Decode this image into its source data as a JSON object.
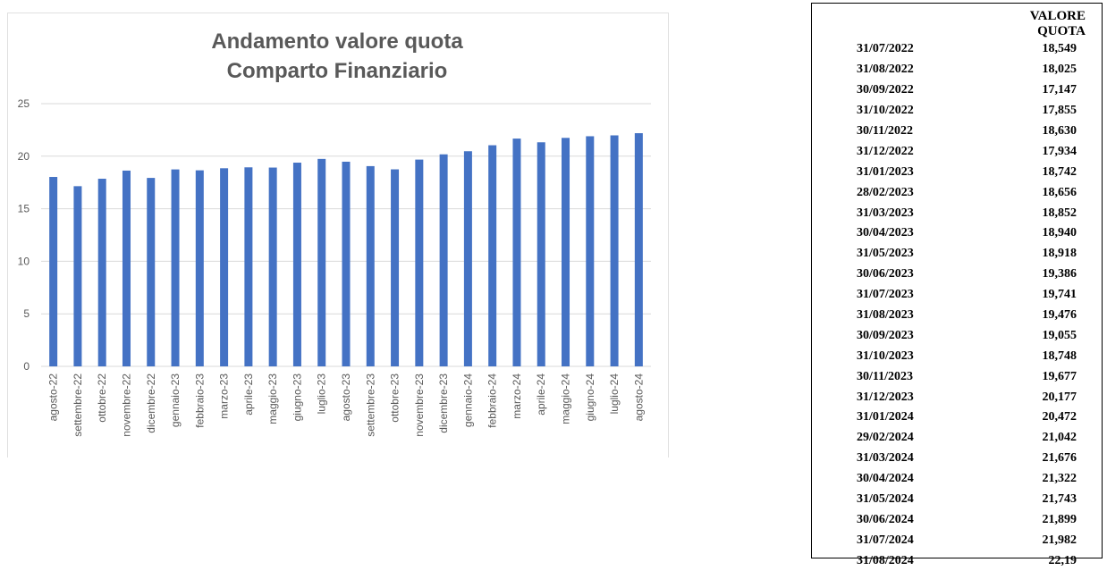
{
  "chart_data": {
    "type": "bar",
    "title": [
      "Andamento valore quota",
      "Comparto Finanziario"
    ],
    "categories": [
      "agosto-22",
      "settembre-22",
      "ottobre-22",
      "novembre-22",
      "dicembre-22",
      "gennaio-23",
      "febbraio-23",
      "marzo-23",
      "aprile-23",
      "maggio-23",
      "giugno-23",
      "luglio-23",
      "agosto-23",
      "settembre-23",
      "ottobre-23",
      "novembre-23",
      "dicembre-23",
      "gennaio-24",
      "febbraio-24",
      "marzo-24",
      "aprile-24",
      "maggio-24",
      "giugno-24",
      "luglio-24",
      "agosto-24"
    ],
    "values": [
      18.025,
      17.147,
      17.855,
      18.63,
      17.934,
      18.742,
      18.656,
      18.852,
      18.94,
      18.918,
      19.386,
      19.741,
      19.476,
      19.055,
      18.748,
      19.677,
      20.177,
      20.472,
      21.042,
      21.676,
      21.322,
      21.743,
      21.899,
      21.982,
      22.19
    ],
    "ylim": [
      0,
      25
    ],
    "yticks": [
      0,
      5,
      10,
      15,
      20,
      25
    ],
    "grid": true,
    "bar_color": "#4472C4",
    "grid_color": "#d9d9d9"
  },
  "table": {
    "header": "VALORE QUOTA",
    "rows": [
      {
        "date": "31/07/2022",
        "value": "18,549"
      },
      {
        "date": "31/08/2022",
        "value": "18,025"
      },
      {
        "date": "30/09/2022",
        "value": "17,147"
      },
      {
        "date": "31/10/2022",
        "value": "17,855"
      },
      {
        "date": "30/11/2022",
        "value": "18,630"
      },
      {
        "date": "31/12/2022",
        "value": "17,934"
      },
      {
        "date": "31/01/2023",
        "value": "18,742"
      },
      {
        "date": "28/02/2023",
        "value": "18,656"
      },
      {
        "date": "31/03/2023",
        "value": "18,852"
      },
      {
        "date": "30/04/2023",
        "value": "18,940"
      },
      {
        "date": "31/05/2023",
        "value": "18,918"
      },
      {
        "date": "30/06/2023",
        "value": "19,386"
      },
      {
        "date": "31/07/2023",
        "value": "19,741"
      },
      {
        "date": "31/08/2023",
        "value": "19,476"
      },
      {
        "date": "30/09/2023",
        "value": "19,055"
      },
      {
        "date": "31/10/2023",
        "value": "18,748"
      },
      {
        "date": "30/11/2023",
        "value": "19,677"
      },
      {
        "date": "31/12/2023",
        "value": "20,177"
      },
      {
        "date": "31/01/2024",
        "value": "20,472"
      },
      {
        "date": "29/02/2024",
        "value": "21,042"
      },
      {
        "date": "31/03/2024",
        "value": "21,676"
      },
      {
        "date": "30/04/2024",
        "value": "21,322"
      },
      {
        "date": "31/05/2024",
        "value": "21,743"
      },
      {
        "date": "30/06/2024",
        "value": "21,899"
      },
      {
        "date": "31/07/2024",
        "value": "21,982"
      },
      {
        "date": "31/08/2024",
        "value": "22,19"
      }
    ]
  }
}
